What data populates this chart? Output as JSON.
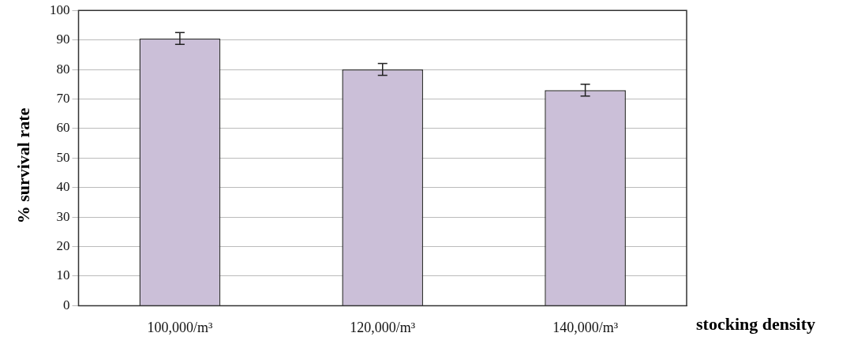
{
  "chart_data": {
    "type": "bar",
    "xlabel": "stocking density",
    "ylabel": "% survival rate",
    "categories": [
      "100,000/m³",
      "120,000/m³",
      "140,000/m³"
    ],
    "values": [
      90.5,
      80,
      73
    ],
    "errors": [
      2,
      2,
      2
    ],
    "color": "#cbbfd8",
    "ylim": [
      0,
      100
    ],
    "yticks": [
      0,
      10,
      20,
      30,
      40,
      50,
      60,
      70,
      80,
      90,
      100
    ],
    "grid": "y",
    "legend": false
  }
}
